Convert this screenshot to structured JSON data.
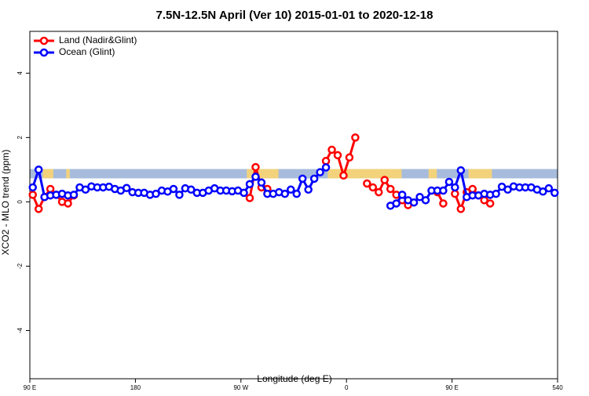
{
  "chart_data": {
    "type": "line",
    "title": "7.5N-12.5N April (Ver 10)   2015-01-01 to 2020-12-18",
    "xlabel": "Longitude (deg E)",
    "ylabel": "XCO2 - MLO trend (ppm)",
    "xlim": [
      90,
      540
    ],
    "ylim": [
      -5.5,
      5.3
    ],
    "xticks": [
      {
        "value": 90,
        "label": "90 E"
      },
      180,
      {
        "value": 270,
        "label": "90 W"
      },
      {
        "value": 360,
        "label": "0"
      },
      {
        "value": 450,
        "label": "90 E"
      },
      540
    ],
    "yticks": [
      -4,
      -2,
      0,
      2,
      4
    ],
    "legend": "top-left",
    "map_strip": {
      "range": [
        0.73,
        1.02
      ],
      "ocean_color": "#a7bcdc",
      "land_color": "#f3d27c",
      "land_lon": [
        [
          101,
          110
        ],
        [
          121,
          124
        ],
        [
          275,
          302
        ],
        [
          344,
          407
        ],
        [
          430,
          437
        ],
        [
          464,
          484
        ]
      ]
    },
    "x": [
      92.5,
      97.5,
      102.5,
      107.5,
      112.5,
      117.5,
      122.5,
      127.5,
      132.5,
      137.5,
      142.5,
      147.5,
      152.5,
      157.5,
      162.5,
      167.5,
      172.5,
      177.5,
      182.5,
      187.5,
      192.5,
      197.5,
      202.5,
      207.5,
      212.5,
      217.5,
      222.5,
      227.5,
      232.5,
      237.5,
      242.5,
      247.5,
      252.5,
      257.5,
      262.5,
      267.5,
      272.5,
      277.5,
      282.5,
      287.5,
      292.5,
      297.5,
      302.5,
      307.5,
      312.5,
      317.5,
      322.5,
      327.5,
      332.5,
      337.5,
      342.5,
      347.5,
      352.5,
      357.5,
      362.5,
      367.5,
      372.5,
      377.5,
      382.5,
      387.5,
      392.5,
      397.5,
      402.5,
      407.5,
      412.5,
      417.5,
      422.5,
      427.5,
      432.5,
      437.5,
      442.5,
      447.5,
      452.5,
      457.5,
      462.5,
      467.5,
      472.5,
      477.5,
      482.5,
      487.5,
      492.5,
      497.5,
      502.5,
      507.5,
      512.5,
      517.5,
      522.5,
      527.5,
      532.5,
      537.5
    ],
    "series": [
      {
        "name": "Land (Nadir&Glint)",
        "color": "#ff0000",
        "values": [
          0.22,
          -0.22,
          0.15,
          0.4,
          0.22,
          0.0,
          -0.05,
          0.2,
          null,
          null,
          null,
          null,
          null,
          null,
          null,
          null,
          null,
          null,
          null,
          null,
          null,
          null,
          null,
          null,
          null,
          null,
          null,
          null,
          null,
          null,
          null,
          null,
          null,
          null,
          null,
          null,
          null,
          0.12,
          1.08,
          0.45,
          0.4,
          null,
          null,
          null,
          null,
          null,
          null,
          null,
          null,
          null,
          1.27,
          1.62,
          1.45,
          0.82,
          1.38,
          2.0,
          null,
          0.57,
          0.45,
          0.3,
          0.68,
          0.4,
          0.22,
          0.05,
          -0.1,
          null,
          null,
          null,
          null,
          0.3,
          -0.05,
          null,
          0.25,
          -0.22,
          0.3,
          0.4,
          0.2,
          0.05,
          -0.05,
          null,
          null,
          null,
          null,
          null,
          null,
          null,
          null,
          null,
          null,
          null
        ]
      },
      {
        "name": "Ocean (Glint)",
        "color": "#0000ff",
        "values": [
          0.45,
          1.0,
          0.15,
          0.2,
          0.22,
          0.25,
          0.2,
          0.22,
          0.45,
          0.38,
          0.48,
          0.45,
          0.45,
          0.47,
          0.4,
          0.35,
          0.43,
          0.3,
          0.28,
          0.28,
          0.22,
          0.25,
          0.35,
          0.32,
          0.4,
          0.22,
          0.42,
          0.38,
          0.28,
          0.28,
          0.35,
          0.42,
          0.35,
          0.35,
          0.33,
          0.35,
          0.28,
          0.55,
          0.78,
          0.6,
          0.25,
          0.25,
          0.3,
          0.25,
          0.38,
          0.25,
          0.72,
          0.38,
          0.72,
          0.92,
          1.07,
          null,
          null,
          null,
          null,
          null,
          null,
          null,
          null,
          null,
          null,
          -0.12,
          -0.05,
          0.22,
          0.05,
          -0.02,
          0.15,
          0.05,
          0.35,
          0.35,
          0.35,
          0.62,
          0.45,
          0.98,
          0.15,
          0.2,
          0.2,
          0.25,
          0.22,
          0.25,
          0.47,
          0.38,
          0.48,
          0.45,
          0.45,
          0.45,
          0.38,
          0.32,
          0.42,
          0.28
        ]
      }
    ]
  }
}
